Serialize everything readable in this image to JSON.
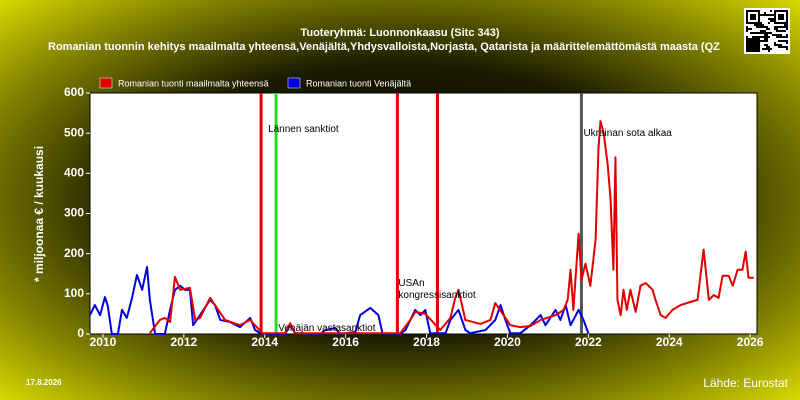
{
  "chart_data": {
    "type": "line",
    "title": "Tuoteryhmä: Luonnonkaasu (Sitc 343)",
    "subtitle": "Romanian tuonnin kehitys maailmalta yhteensä,Venäjältä,Yhdysvalloista,Norjasta, Qatarista ja määrittelemättömästä maasta (QZ",
    "y_label": "* miljoonaa € / kuukausi",
    "date": "17.8.2026",
    "source": "Lähde: Eurostat",
    "xlim": [
      2009.68,
      2026.17
    ],
    "xticks": [
      2010,
      2012,
      2014,
      2016,
      2018,
      2020,
      2022,
      2024,
      2026
    ],
    "ylim": [
      0,
      600
    ],
    "yticks": [
      0,
      100,
      200,
      300,
      400,
      500,
      600
    ],
    "vlines": [
      {
        "x": 2013.91,
        "color": "#e00000"
      },
      {
        "x": 2014.28,
        "color": "#22e022",
        "label": "Lännen sanktiot"
      },
      {
        "x": 2017.28,
        "color": "#e00000",
        "label": "USAn kongressisanktiot"
      },
      {
        "x": 2018.27,
        "color": "#e00000"
      },
      {
        "x": 2021.83,
        "color": "#555555",
        "label": "Ukrainan sota alkaa"
      }
    ],
    "annotations": [
      {
        "text": "Venäjän vastasanktiot",
        "x": 2014.63,
        "y": 13
      }
    ],
    "series": [
      {
        "name": "Romanian tuonti maailmalta yhteensä",
        "color": "#e00000",
        "x": [
          2011.16,
          2011.41,
          2011.53,
          2011.66,
          2011.78,
          2011.91,
          2012.15,
          2012.28,
          2012.4,
          2012.65,
          2012.77,
          2013.02,
          2013.39,
          2013.64,
          2013.94,
          2014.5,
          2014.63,
          2014.75,
          2017.35,
          2017.6,
          2017.72,
          2017.97,
          2018.34,
          2018.59,
          2018.71,
          2018.79,
          2018.96,
          2019.33,
          2019.58,
          2019.7,
          2019.95,
          2020.07,
          2020.32,
          2020.57,
          2020.82,
          2021.19,
          2021.39,
          2021.49,
          2021.56,
          2021.63,
          2021.76,
          2021.83,
          2021.93,
          2022.05,
          2022.18,
          2022.25,
          2022.3,
          2022.38,
          2022.48,
          2022.55,
          2022.62,
          2022.67,
          2022.72,
          2022.8,
          2022.87,
          2022.95,
          2023.04,
          2023.17,
          2023.29,
          2023.42,
          2023.59,
          2023.66,
          2023.79,
          2023.91,
          2024.08,
          2024.28,
          2024.53,
          2024.7,
          2024.85,
          2024.98,
          2025.1,
          2025.22,
          2025.32,
          2025.47,
          2025.57,
          2025.69,
          2025.81,
          2025.89,
          2025.96,
          2026.09
        ],
        "values": [
          2,
          35,
          40,
          30,
          142,
          110,
          115,
          35,
          40,
          90,
          72,
          35,
          22,
          35,
          2,
          2,
          27,
          2,
          2,
          35,
          55,
          50,
          10,
          40,
          90,
          110,
          35,
          25,
          35,
          77,
          40,
          22,
          17,
          20,
          35,
          47,
          60,
          85,
          160,
          60,
          250,
          135,
          175,
          120,
          235,
          460,
          530,
          500,
          420,
          335,
          160,
          440,
          85,
          47,
          110,
          60,
          110,
          55,
          120,
          127,
          110,
          85,
          47,
          40,
          60,
          72,
          80,
          85,
          210,
          85,
          97,
          90,
          145,
          145,
          120,
          160,
          160,
          205,
          140,
          140
        ]
      },
      {
        "name": "Romanian tuonti Venäjältä",
        "color": "#0000e0",
        "x": [
          2009.68,
          2009.8,
          2009.93,
          2010.05,
          2010.12,
          2010.22,
          2010.37,
          2010.47,
          2010.59,
          2010.72,
          2010.84,
          2010.97,
          2011.09,
          2011.16,
          2011.29,
          2011.53,
          2011.66,
          2011.78,
          2011.91,
          2012.03,
          2012.15,
          2012.23,
          2012.4,
          2012.65,
          2012.77,
          2012.9,
          2013.14,
          2013.39,
          2013.64,
          2013.76,
          2013.89,
          2014.13,
          2014.5,
          2014.63,
          2014.75,
          2015.37,
          2015.5,
          2015.74,
          2015.87,
          2016.24,
          2016.36,
          2016.61,
          2016.81,
          2016.91,
          2017.35,
          2017.48,
          2017.6,
          2017.72,
          2017.85,
          2017.97,
          2018.09,
          2018.47,
          2018.59,
          2018.79,
          2018.96,
          2019.08,
          2019.46,
          2019.7,
          2019.83,
          2019.95,
          2020.07,
          2020.32,
          2020.57,
          2020.82,
          2020.94,
          2021.19,
          2021.31,
          2021.44,
          2021.56,
          2021.76,
          2021.88,
          2022.0
        ],
        "values": [
          47,
          72,
          47,
          92,
          70,
          0,
          0,
          60,
          40,
          90,
          147,
          110,
          167,
          85,
          0,
          0,
          60,
          110,
          120,
          110,
          110,
          22,
          47,
          85,
          72,
          35,
          30,
          17,
          40,
          10,
          2,
          0,
          0,
          22,
          2,
          0,
          10,
          15,
          0,
          5,
          47,
          65,
          47,
          2,
          0,
          10,
          35,
          60,
          47,
          60,
          2,
          2,
          35,
          60,
          10,
          2,
          10,
          35,
          72,
          35,
          2,
          2,
          22,
          47,
          22,
          60,
          35,
          72,
          22,
          60,
          35,
          2
        ]
      }
    ]
  }
}
